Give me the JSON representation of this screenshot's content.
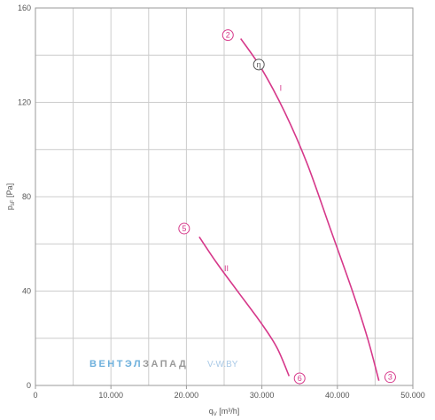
{
  "chart_data": {
    "type": "line",
    "xlabel": "q",
    "xlabel_sub": "V",
    "xlabel_unit": " [m³/h]",
    "ylabel": "p",
    "ylabel_sub": "sF",
    "ylabel_unit": " [Pa]",
    "xlim": [
      0,
      50000
    ],
    "ylim": [
      0,
      160
    ],
    "x_ticks": [
      0,
      10000,
      20000,
      30000,
      40000,
      50000
    ],
    "x_tick_labels": [
      "0",
      "10.000",
      "20.000",
      "30.000",
      "40.000",
      "50.000"
    ],
    "y_ticks": [
      0,
      40,
      80,
      120,
      160
    ],
    "y_tick_labels": [
      "0",
      "40",
      "80",
      "120",
      "160"
    ],
    "x_minor_step": 5000,
    "y_minor_step": 20,
    "grid": true,
    "colors": {
      "curve": "#d6388a",
      "grid": "#cccccc",
      "axis": "#999999",
      "watermark_blue": "#6eb0dc",
      "watermark_gray": "#9a9a9a"
    },
    "series": [
      {
        "name": "I",
        "points": [
          [
            27200,
            147
          ],
          [
            30000,
            134
          ],
          [
            33000,
            116
          ],
          [
            36000,
            94
          ],
          [
            39000,
            67
          ],
          [
            42000,
            40
          ],
          [
            44000,
            20
          ],
          [
            45500,
            2
          ]
        ]
      },
      {
        "name": "II",
        "points": [
          [
            21700,
            63
          ],
          [
            24000,
            52
          ],
          [
            27000,
            39
          ],
          [
            30000,
            26
          ],
          [
            32000,
            16
          ],
          [
            33600,
            4
          ]
        ]
      }
    ],
    "annotations": [
      {
        "text": "2",
        "x": 25500,
        "y": 148.5
      },
      {
        "text": "η",
        "x": 29600,
        "y": 136
      },
      {
        "text": "3",
        "x": 47000,
        "y": 3.5
      },
      {
        "text": "5",
        "x": 19700,
        "y": 66.5
      },
      {
        "text": "6",
        "x": 35000,
        "y": 3
      }
    ],
    "series_labels": [
      {
        "text": "I",
        "x": 32500,
        "y": 126
      },
      {
        "text": "II",
        "x": 25300,
        "y": 49.5
      }
    ],
    "watermark": {
      "part1": "ВЕНТЭЛ",
      "part2": "ЗАПАД",
      "url": "V-W.BY"
    }
  }
}
